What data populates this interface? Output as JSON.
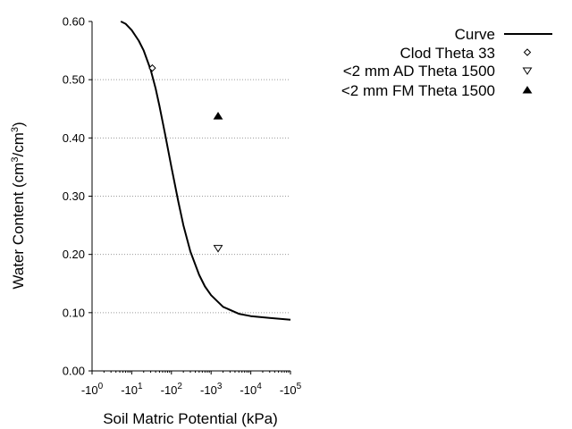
{
  "chart_data": {
    "type": "scatter",
    "title": "",
    "xlabel": "Soil Matric Potential (kPa)",
    "ylabel": {
      "prefix": "Water Content (cm",
      "sup1": "3",
      "mid": "/cm",
      "sup2": "3",
      "suffix": ")"
    },
    "x_scale": "log",
    "x_direction": "negative",
    "xlim": [
      -1,
      -100000
    ],
    "ylim": [
      0,
      0.6
    ],
    "grid": "horizontal dotted",
    "legend_position": "right",
    "x_ticks": [
      {
        "value": -1,
        "base": "-10",
        "exp": "0"
      },
      {
        "value": -10,
        "base": "-10",
        "exp": "1"
      },
      {
        "value": -100,
        "base": "-10",
        "exp": "2"
      },
      {
        "value": -1000,
        "base": "-10",
        "exp": "3"
      },
      {
        "value": -10000,
        "base": "-10",
        "exp": "4"
      },
      {
        "value": -100000,
        "base": "-10",
        "exp": "5"
      }
    ],
    "y_ticks": [
      {
        "value": 0.0,
        "label": "0.00"
      },
      {
        "value": 0.1,
        "label": "0.10"
      },
      {
        "value": 0.2,
        "label": "0.20"
      },
      {
        "value": 0.3,
        "label": "0.30"
      },
      {
        "value": 0.4,
        "label": "0.40"
      },
      {
        "value": 0.5,
        "label": "0.50"
      },
      {
        "value": 0.6,
        "label": "0.60"
      }
    ],
    "series": [
      {
        "name": "Curve",
        "kind": "line",
        "color": "#000000",
        "x": [
          -5.3,
          -7,
          -10,
          -15,
          -20,
          -30,
          -40,
          -50,
          -70,
          -100,
          -150,
          -200,
          -300,
          -500,
          -700,
          -1000,
          -2000,
          -5000,
          -10000,
          -30000,
          -100000
        ],
        "y": [
          0.6,
          0.596,
          0.585,
          0.567,
          0.55,
          0.517,
          0.485,
          0.455,
          0.405,
          0.35,
          0.29,
          0.25,
          0.205,
          0.165,
          0.145,
          0.13,
          0.11,
          0.098,
          0.094,
          0.091,
          0.088
        ]
      },
      {
        "name": "Clod Theta 33",
        "kind": "points",
        "marker": "diamond-open",
        "x": [
          -33
        ],
        "y": [
          0.52
        ]
      },
      {
        "name": "<2 mm AD Theta 1500",
        "kind": "points",
        "marker": "triangle-down-open",
        "x": [
          -1500
        ],
        "y": [
          0.21
        ]
      },
      {
        "name": "<2 mm FM Theta 1500",
        "kind": "points",
        "marker": "triangle-up-filled",
        "x": [
          -1500
        ],
        "y": [
          0.438
        ]
      }
    ]
  }
}
